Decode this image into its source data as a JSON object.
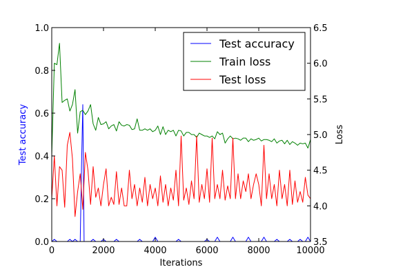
{
  "chart_data": {
    "type": "line",
    "xlabel": "Iterations",
    "ylabel_left": "Test accuracy",
    "ylabel_right": "Loss",
    "xlim": [
      0,
      10000
    ],
    "ylim_left": [
      0.0,
      1.0
    ],
    "ylim_right": [
      3.5,
      6.5
    ],
    "grid": false,
    "legend": "top-right",
    "x_ticks": [
      "0",
      "2000",
      "4000",
      "6000",
      "8000",
      "10000"
    ],
    "y_left_ticks": [
      "0.0",
      "0.2",
      "0.4",
      "0.6",
      "0.8",
      "1.0"
    ],
    "y_right_ticks": [
      "3.5",
      "4.0",
      "4.5",
      "5.0",
      "5.5",
      "6.0",
      "6.5"
    ],
    "colors": {
      "test_accuracy": "#0000ff",
      "train_loss": "#008000",
      "test_loss": "#ff0000",
      "left_label": "#0000ff"
    },
    "series": [
      {
        "name": "Test accuracy",
        "axis": "left",
        "x": [
          0,
          100,
          200,
          300,
          400,
          500,
          600,
          700,
          800,
          900,
          1000,
          1100,
          1150,
          1200,
          1250,
          1300,
          1400,
          1500,
          1600,
          1700,
          1800,
          1900,
          2000,
          2100,
          2200,
          2300,
          2400,
          2500,
          2600,
          2700,
          2800,
          2900,
          3000,
          3100,
          3200,
          3300,
          3400,
          3500,
          3600,
          3700,
          3800,
          3900,
          4000,
          4100,
          4200,
          4300,
          4400,
          4500,
          4600,
          4700,
          4800,
          4900,
          5000,
          5100,
          5200,
          5300,
          5400,
          5500,
          5600,
          5700,
          5800,
          5900,
          6000,
          6100,
          6200,
          6300,
          6400,
          6500,
          6600,
          6700,
          6800,
          6900,
          7000,
          7100,
          7200,
          7300,
          7400,
          7500,
          7600,
          7700,
          7800,
          7900,
          8000,
          8100,
          8200,
          8300,
          8400,
          8500,
          8600,
          8700,
          8800,
          8900,
          9000,
          9100,
          9200,
          9300,
          9400,
          9500,
          9600,
          9700,
          9800,
          9900,
          10000
        ],
        "values": [
          0.0,
          0.01,
          0.0,
          0.0,
          0.0,
          0.0,
          0.0,
          0.01,
          0.0,
          0.01,
          0.0,
          0.0,
          0.35,
          0.64,
          0.0,
          0.0,
          0.0,
          0.0,
          0.01,
          0.0,
          0.0,
          0.0,
          0.01,
          0.0,
          0.0,
          0.0,
          0.0,
          0.01,
          0.0,
          0.0,
          0.0,
          0.0,
          0.0,
          0.0,
          0.0,
          0.0,
          0.01,
          0.0,
          0.0,
          0.0,
          0.0,
          0.0,
          0.02,
          0.0,
          0.0,
          0.0,
          0.0,
          0.0,
          0.0,
          0.0,
          0.0,
          0.01,
          0.0,
          0.0,
          0.0,
          0.0,
          0.0,
          0.0,
          0.0,
          0.0,
          0.0,
          0.0,
          0.01,
          0.0,
          0.0,
          0.0,
          0.02,
          0.0,
          0.0,
          0.0,
          0.0,
          0.0,
          0.02,
          0.0,
          0.0,
          0.0,
          0.0,
          0.0,
          0.02,
          0.0,
          0.0,
          0.0,
          0.0,
          0.0,
          0.02,
          0.0,
          0.0,
          0.0,
          0.0,
          0.01,
          0.0,
          0.0,
          0.0,
          0.0,
          0.01,
          0.0,
          0.0,
          0.0,
          0.01,
          0.0,
          0.0,
          0.02,
          0.0
        ]
      },
      {
        "name": "Train loss",
        "axis": "right",
        "x": [
          0,
          100,
          200,
          300,
          400,
          500,
          600,
          700,
          800,
          900,
          1000,
          1100,
          1200,
          1300,
          1400,
          1500,
          1600,
          1700,
          1800,
          1900,
          2000,
          2100,
          2200,
          2300,
          2400,
          2500,
          2600,
          2700,
          2800,
          2900,
          3000,
          3100,
          3200,
          3300,
          3400,
          3500,
          3600,
          3700,
          3800,
          3900,
          4000,
          4100,
          4200,
          4300,
          4400,
          4500,
          4600,
          4700,
          4800,
          4900,
          5000,
          5100,
          5200,
          5300,
          5400,
          5500,
          5600,
          5700,
          5800,
          5900,
          6000,
          6100,
          6200,
          6300,
          6400,
          6500,
          6600,
          6700,
          6800,
          6900,
          7000,
          7100,
          7200,
          7300,
          7400,
          7500,
          7600,
          7700,
          7800,
          7900,
          8000,
          8100,
          8200,
          8300,
          8400,
          8500,
          8600,
          8700,
          8800,
          8900,
          9000,
          9100,
          9200,
          9300,
          9400,
          9500,
          9600,
          9700,
          9800,
          9900,
          10000
        ],
        "values": [
          4.7,
          6.0,
          5.98,
          6.28,
          5.45,
          5.48,
          5.5,
          5.33,
          5.42,
          5.63,
          5.02,
          5.32,
          5.34,
          5.28,
          5.33,
          5.42,
          5.15,
          5.06,
          5.24,
          5.14,
          5.15,
          5.18,
          5.08,
          5.12,
          5.14,
          5.05,
          5.18,
          5.13,
          5.12,
          5.14,
          5.13,
          5.07,
          5.08,
          5.22,
          5.06,
          5.06,
          5.08,
          5.06,
          5.08,
          5.04,
          5.06,
          5.12,
          5.0,
          5.11,
          5.0,
          5.06,
          5.04,
          5.06,
          4.98,
          5.06,
          5.05,
          4.98,
          5.03,
          5.03,
          5.0,
          5.0,
          4.96,
          5.02,
          5.0,
          4.98,
          4.98,
          4.96,
          4.98,
          4.94,
          5.04,
          5.0,
          5.02,
          4.88,
          4.94,
          4.98,
          4.94,
          4.95,
          4.94,
          4.92,
          4.95,
          4.95,
          4.9,
          4.94,
          4.92,
          4.93,
          4.95,
          4.91,
          4.93,
          4.93,
          4.92,
          4.9,
          4.94,
          4.88,
          4.91,
          4.92,
          4.87,
          4.92,
          4.86,
          4.9,
          4.88,
          4.85,
          4.88,
          4.87,
          4.88,
          4.81,
          4.93
        ]
      },
      {
        "name": "Test loss",
        "axis": "right",
        "x": [
          0,
          100,
          200,
          300,
          400,
          500,
          600,
          700,
          800,
          900,
          1000,
          1100,
          1200,
          1300,
          1400,
          1500,
          1600,
          1700,
          1800,
          1900,
          2000,
          2100,
          2200,
          2300,
          2400,
          2500,
          2600,
          2700,
          2800,
          2900,
          3000,
          3100,
          3200,
          3300,
          3400,
          3500,
          3600,
          3700,
          3800,
          3900,
          4000,
          4100,
          4200,
          4300,
          4400,
          4500,
          4600,
          4700,
          4800,
          4900,
          5000,
          5100,
          5200,
          5300,
          5400,
          5500,
          5600,
          5700,
          5800,
          5900,
          6000,
          6100,
          6200,
          6300,
          6400,
          6500,
          6600,
          6700,
          6800,
          6900,
          7000,
          7100,
          7200,
          7300,
          7400,
          7500,
          7600,
          7700,
          7800,
          7900,
          8000,
          8100,
          8200,
          8300,
          8400,
          8500,
          8600,
          8700,
          8800,
          8900,
          9000,
          9100,
          9200,
          9300,
          9400,
          9500,
          9600,
          9700,
          9800,
          9900,
          10000
        ],
        "values": [
          4.1,
          4.7,
          4.0,
          4.55,
          4.5,
          3.98,
          4.85,
          5.03,
          4.66,
          3.85,
          4.2,
          4.45,
          3.95,
          4.75,
          4.5,
          4.02,
          4.55,
          4.12,
          4.25,
          4.0,
          4.3,
          4.52,
          4.0,
          4.12,
          4.02,
          4.48,
          4.02,
          4.25,
          4.0,
          4.0,
          4.5,
          4.1,
          4.3,
          4.0,
          4.25,
          4.05,
          4.4,
          4.0,
          4.3,
          4.1,
          4.25,
          4.0,
          4.42,
          4.05,
          4.3,
          4.0,
          4.25,
          4.08,
          4.5,
          4.0,
          4.98,
          4.08,
          4.25,
          4.02,
          4.35,
          4.1,
          4.98,
          4.05,
          4.3,
          4.1,
          4.52,
          4.05,
          4.95,
          4.1,
          4.3,
          4.1,
          4.5,
          4.08,
          4.28,
          4.1,
          4.95,
          4.1,
          4.45,
          4.1,
          4.35,
          4.2,
          4.45,
          4.1,
          4.3,
          4.45,
          4.3,
          4.0,
          4.85,
          4.1,
          4.45,
          4.1,
          4.3,
          4.0,
          4.5,
          4.1,
          4.3,
          4.0,
          4.5,
          4.02,
          4.35,
          4.05,
          4.2,
          4.05,
          4.4,
          4.15,
          4.1
        ]
      }
    ]
  }
}
